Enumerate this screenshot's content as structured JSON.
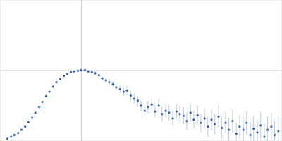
{
  "chart_data": {
    "type": "scatter",
    "color": "#3a62b5",
    "marker": "circle",
    "xlim": [
      0,
      6.02
    ],
    "ylim": [
      0,
      2.208
    ],
    "xticks": [
      1.732
    ],
    "yticks": [
      1.104
    ],
    "grid": true,
    "tick_labels": false,
    "x": [
      0.15,
      0.23,
      0.3,
      0.38,
      0.45,
      0.53,
      0.6,
      0.68,
      0.75,
      0.83,
      0.9,
      0.98,
      1.05,
      1.13,
      1.2,
      1.28,
      1.36,
      1.43,
      1.51,
      1.58,
      1.66,
      1.73,
      1.81,
      1.88,
      1.96,
      2.03,
      2.11,
      2.18,
      2.26,
      2.33,
      2.41,
      2.48,
      2.56,
      2.64,
      2.71,
      2.79,
      2.86,
      2.94,
      3.01,
      3.09,
      3.16,
      3.24,
      3.31,
      3.39,
      3.46,
      3.54,
      3.61,
      3.69,
      3.77,
      3.84,
      3.92,
      3.99,
      4.07,
      4.14,
      4.22,
      4.29,
      4.37,
      4.44,
      4.52,
      4.59,
      4.67,
      4.74,
      4.82,
      4.89,
      4.97,
      5.05,
      5.12,
      5.2,
      5.27,
      5.35,
      5.42,
      5.5,
      5.57,
      5.65,
      5.72,
      5.8,
      5.87,
      5.95
    ],
    "values": [
      0.03,
      0.06,
      0.09,
      0.12,
      0.17,
      0.22,
      0.29,
      0.36,
      0.44,
      0.53,
      0.61,
      0.7,
      0.77,
      0.85,
      0.92,
      0.97,
      1.02,
      1.05,
      1.08,
      1.09,
      1.1,
      1.11,
      1.11,
      1.09,
      1.08,
      1.06,
      1.03,
      0.98,
      0.95,
      0.92,
      0.89,
      0.84,
      0.81,
      0.77,
      0.79,
      0.71,
      0.66,
      0.63,
      0.55,
      0.47,
      0.53,
      0.57,
      0.46,
      0.55,
      0.42,
      0.47,
      0.44,
      0.35,
      0.46,
      0.42,
      0.39,
      0.31,
      0.44,
      0.33,
      0.4,
      0.28,
      0.35,
      0.22,
      0.33,
      0.26,
      0.38,
      0.2,
      0.28,
      0.17,
      0.31,
      0.11,
      0.22,
      0.17,
      0.28,
      0.09,
      0.19,
      0.13,
      0.24,
      0.06,
      0.17,
      0.22,
      0.09,
      0.15
    ],
    "errors": [
      0.01,
      0.01,
      0.01,
      0.01,
      0.01,
      0.01,
      0.01,
      0.01,
      0.01,
      0.01,
      0.01,
      0.01,
      0.01,
      0.01,
      0.01,
      0.01,
      0.01,
      0.01,
      0.01,
      0.02,
      0.02,
      0.02,
      0.03,
      0.03,
      0.03,
      0.03,
      0.04,
      0.04,
      0.04,
      0.05,
      0.05,
      0.05,
      0.06,
      0.06,
      0.07,
      0.07,
      0.08,
      0.08,
      0.09,
      0.09,
      0.1,
      0.1,
      0.1,
      0.11,
      0.11,
      0.11,
      0.12,
      0.12,
      0.12,
      0.13,
      0.13,
      0.14,
      0.14,
      0.14,
      0.15,
      0.15,
      0.15,
      0.16,
      0.16,
      0.16,
      0.17,
      0.17,
      0.17,
      0.18,
      0.18,
      0.18,
      0.19,
      0.19,
      0.19,
      0.2,
      0.2,
      0.2,
      0.21,
      0.21,
      0.21,
      0.22,
      0.22,
      0.22
    ]
  }
}
